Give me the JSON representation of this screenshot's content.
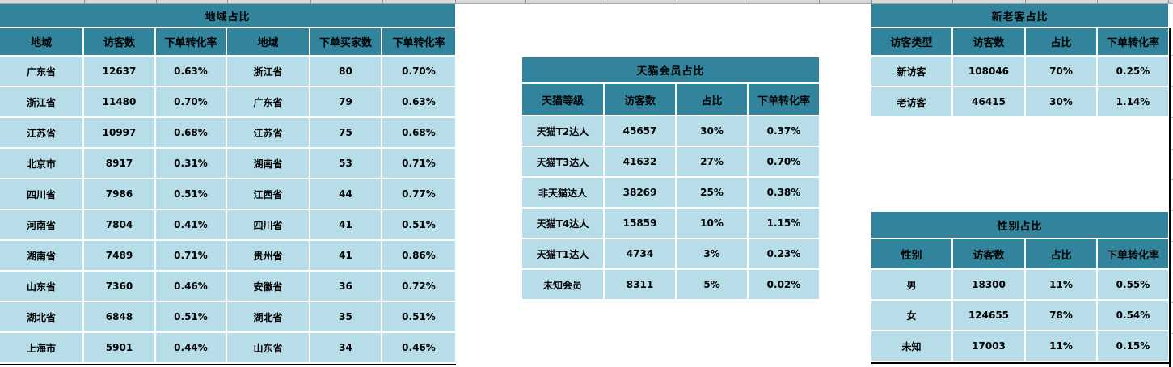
{
  "colors": {
    "header_teal": "#31849B",
    "row_blue": "#B7DEE8",
    "separator_white": "#FFFFFF",
    "grid_strip_gray": "#D9D9D9",
    "border_black": "#000000"
  },
  "tables": {
    "region": {
      "title": "地域占比",
      "columns": [
        "地域",
        "访客数",
        "下单转化率",
        "地域",
        "下单买家数",
        "下单转化率"
      ],
      "rows": [
        [
          "广东省",
          "12637",
          "0.63%",
          "浙江省",
          "80",
          "0.70%"
        ],
        [
          "浙江省",
          "11480",
          "0.70%",
          "广东省",
          "79",
          "0.63%"
        ],
        [
          "江苏省",
          "10997",
          "0.68%",
          "江苏省",
          "75",
          "0.68%"
        ],
        [
          "北京市",
          "8917",
          "0.31%",
          "湖南省",
          "53",
          "0.71%"
        ],
        [
          "四川省",
          "7986",
          "0.51%",
          "江西省",
          "44",
          "0.77%"
        ],
        [
          "河南省",
          "7804",
          "0.41%",
          "四川省",
          "41",
          "0.51%"
        ],
        [
          "湖南省",
          "7489",
          "0.71%",
          "贵州省",
          "41",
          "0.86%"
        ],
        [
          "山东省",
          "7360",
          "0.46%",
          "安徽省",
          "36",
          "0.72%"
        ],
        [
          "湖北省",
          "6848",
          "0.51%",
          "湖北省",
          "35",
          "0.51%"
        ],
        [
          "上海市",
          "5901",
          "0.44%",
          "山东省",
          "34",
          "0.46%"
        ]
      ]
    },
    "tmall": {
      "title": "天猫会员占比",
      "columns": [
        "天猫等级",
        "访客数",
        "占比",
        "下单转化率"
      ],
      "rows": [
        [
          "天猫T2达人",
          "45657",
          "30%",
          "0.37%"
        ],
        [
          "天猫T3达人",
          "41632",
          "27%",
          "0.70%"
        ],
        [
          "非天猫达人",
          "38269",
          "25%",
          "0.38%"
        ],
        [
          "天猫T4达人",
          "15859",
          "10%",
          "1.15%"
        ],
        [
          "天猫T1达人",
          "4734",
          "3%",
          "0.23%"
        ],
        [
          "未知会员",
          "8311",
          "5%",
          "0.02%"
        ]
      ]
    },
    "visitor": {
      "title": "新老客占比",
      "columns": [
        "访客类型",
        "访客数",
        "占比",
        "下单转化率"
      ],
      "rows": [
        [
          "新访客",
          "108046",
          "70%",
          "0.25%"
        ],
        [
          "老访客",
          "46415",
          "30%",
          "1.14%"
        ]
      ]
    },
    "gender": {
      "title": "性别占比",
      "columns": [
        "性别",
        "访客数",
        "占比",
        "下单转化率"
      ],
      "rows": [
        [
          "男",
          "18300",
          "11%",
          "0.55%"
        ],
        [
          "女",
          "124655",
          "78%",
          "0.54%"
        ],
        [
          "未知",
          "17003",
          "11%",
          "0.15%"
        ]
      ]
    }
  }
}
